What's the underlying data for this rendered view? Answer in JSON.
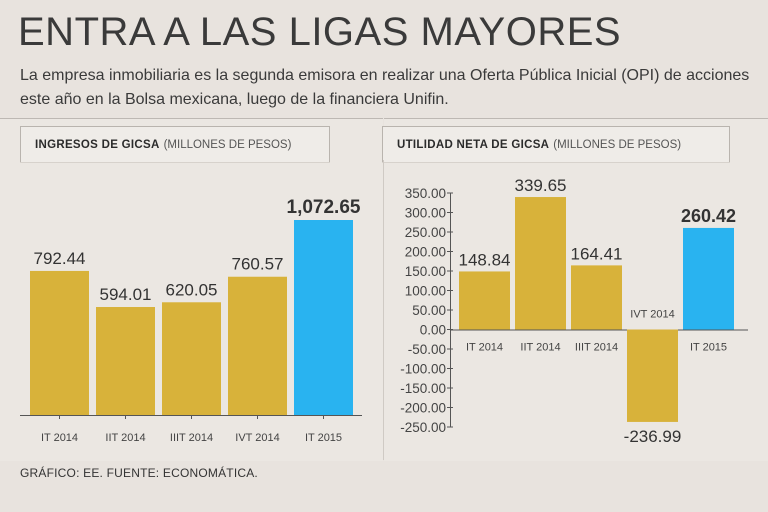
{
  "header": {
    "title": "ENTRA A LAS LIGAS MAYORES",
    "subtitle": "La empresa inmobiliaria es la segunda emisora en realizar una Oferta Pública Inicial (OPI) de acciones este año en la Bolsa mexicana, luego de la financiera Unifin."
  },
  "colors": {
    "gold": "#d8b23a",
    "blue": "#29b3f0",
    "axis": "#555555"
  },
  "chart_data": [
    {
      "type": "bar",
      "title_bold": "INGRESOS DE GICSA",
      "title_light": "(MILLONES DE PESOS)",
      "categories": [
        "IT 2014",
        "IIT 2014",
        "IIIT 2014",
        "IVT 2014",
        "IT 2015"
      ],
      "value_labels": [
        "792.44",
        "594.01",
        "620.05",
        "760.57",
        "1,072.65"
      ],
      "values": [
        792.44,
        594.01,
        620.05,
        760.57,
        1072.65
      ],
      "highlight_index": 4,
      "ylim": [
        0,
        1072.65
      ]
    },
    {
      "type": "bar",
      "title_bold": "UTILIDAD NETA DE GICSA",
      "title_light": "(MILLONES DE PESOS)",
      "categories": [
        "IT 2014",
        "IIT 2014",
        "IIIT 2014",
        "IVT 2014",
        "IT 2015"
      ],
      "value_labels": [
        "148.84",
        "339.65",
        "164.41",
        "-236.99",
        "260.42"
      ],
      "values": [
        148.84,
        339.65,
        164.41,
        -236.99,
        260.42
      ],
      "highlight_index": 4,
      "ylim": [
        -250,
        350
      ],
      "yticks": [
        350,
        300,
        250,
        200,
        150,
        100,
        50,
        0,
        -50,
        -100,
        -150,
        -200,
        -250
      ],
      "ytick_labels": [
        "350.00",
        "300.00",
        "250.00",
        "200.00",
        "150.00",
        "100.00",
        "50.00",
        "0.00",
        "-50.00",
        "-100.00",
        "-150.00",
        "-200.00",
        "-250.00"
      ]
    }
  ],
  "footer": {
    "source": "GRÁFICO: EE. FUENTE: ECONOMÁTICA."
  }
}
